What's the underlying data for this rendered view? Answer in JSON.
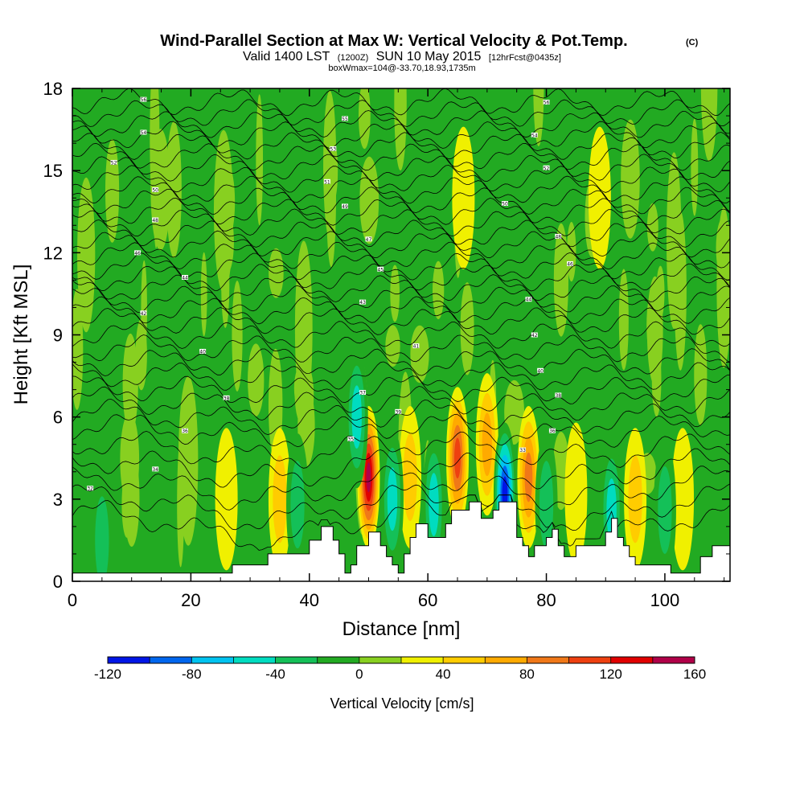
{
  "chart_data": {
    "type": "heatmap",
    "title": "Wind-Parallel Section at Max W: Vertical Velocity & Pot.Temp.",
    "title_mark": "(C)",
    "subtitle_valid": "Valid 1400 LST",
    "subtitle_utc": "(1200Z)",
    "subtitle_date": "SUN 10 May 2015",
    "subtitle_fcst": "[12hrFcst@0435z]",
    "subtitle_box": "boxWmax=104@-33.70,18.93,1735m",
    "xlabel": "Distance [nm]",
    "ylabel": "Height [Kft MSL]",
    "xlim": [
      0,
      111
    ],
    "ylim": [
      0,
      18
    ],
    "x_ticks": [
      0,
      20,
      40,
      60,
      80,
      100
    ],
    "y_ticks": [
      0,
      3,
      6,
      9,
      12,
      15,
      18
    ],
    "colorbar": {
      "label": "Vertical Velocity [cm/s]",
      "levels": [
        -120,
        -100,
        -80,
        -60,
        -40,
        -20,
        0,
        20,
        40,
        60,
        80,
        100,
        120,
        140,
        160
      ],
      "tick_labels": [
        "-120",
        "-80",
        "-40",
        "0",
        "40",
        "80",
        "120",
        "160"
      ],
      "colors": [
        "#0015e6",
        "#0066ee",
        "#00c3f0",
        "#00dcc0",
        "#14c058",
        "#22aa22",
        "#88d020",
        "#f0f000",
        "#ffcc00",
        "#ffaa00",
        "#f07818",
        "#ee4010",
        "#e00000",
        "#b00048"
      ]
    },
    "background_w": 0,
    "updrafts": [
      {
        "x": 3,
        "z": 2.4,
        "w": 20
      },
      {
        "x": 10,
        "z": 3.0,
        "w": 20
      },
      {
        "x": 26,
        "z": 3.0,
        "w": 25
      },
      {
        "x": 35,
        "z": 3.0,
        "w": 45
      },
      {
        "x": 50,
        "z": 3.8,
        "w": 145
      },
      {
        "x": 57,
        "z": 3.8,
        "w": 60
      },
      {
        "x": 65,
        "z": 4.5,
        "w": 115
      },
      {
        "x": 70,
        "z": 5.0,
        "w": 75
      },
      {
        "x": 77,
        "z": 3.8,
        "w": 85
      },
      {
        "x": 85,
        "z": 3.2,
        "w": 40
      },
      {
        "x": 95,
        "z": 3.0,
        "w": 45
      },
      {
        "x": 103,
        "z": 3.0,
        "w": 30
      },
      {
        "x": 66,
        "z": 14,
        "w": 40
      },
      {
        "x": 89,
        "z": 14,
        "w": 25
      }
    ],
    "downdrafts": [
      {
        "x": 5,
        "z": 1.5,
        "w": -25
      },
      {
        "x": 38,
        "z": 2.8,
        "w": -35
      },
      {
        "x": 48,
        "z": 6.0,
        "w": -45
      },
      {
        "x": 54,
        "z": 3.0,
        "w": -55
      },
      {
        "x": 61,
        "z": 2.8,
        "w": -45
      },
      {
        "x": 73,
        "z": 3.2,
        "w": -115
      },
      {
        "x": 80,
        "z": 2.8,
        "w": -40
      },
      {
        "x": 91,
        "z": 2.6,
        "w": -50
      },
      {
        "x": 100,
        "z": 2.6,
        "w": -30
      }
    ],
    "terrain_kft": [
      [
        0,
        0.3
      ],
      [
        26,
        0.3
      ],
      [
        27,
        0.6
      ],
      [
        29,
        0.6
      ],
      [
        33,
        1.0
      ],
      [
        39,
        1.0
      ],
      [
        40,
        1.5
      ],
      [
        41,
        1.5
      ],
      [
        42,
        2.0
      ],
      [
        43,
        2.0
      ],
      [
        44,
        1.5
      ],
      [
        45,
        1.0
      ],
      [
        46,
        0.3
      ],
      [
        47,
        0.6
      ],
      [
        48,
        1.3
      ],
      [
        49,
        1.3
      ],
      [
        50,
        1.8
      ],
      [
        51,
        1.8
      ],
      [
        52,
        1.3
      ],
      [
        53,
        0.9
      ],
      [
        54,
        0.6
      ],
      [
        55,
        0.3
      ],
      [
        56,
        1.0
      ],
      [
        57,
        1.6
      ],
      [
        58,
        2.1
      ],
      [
        59,
        2.1
      ],
      [
        60,
        1.6
      ],
      [
        62,
        1.6
      ],
      [
        63,
        2.1
      ],
      [
        64,
        2.6
      ],
      [
        67,
        2.9
      ],
      [
        68,
        2.9
      ],
      [
        69,
        2.3
      ],
      [
        71,
        2.6
      ],
      [
        72,
        2.9
      ],
      [
        74,
        2.9
      ],
      [
        75,
        1.6
      ],
      [
        76,
        1.3
      ],
      [
        77,
        0.9
      ],
      [
        78,
        1.3
      ],
      [
        79,
        1.3
      ],
      [
        80,
        1.6
      ],
      [
        81,
        1.9
      ],
      [
        82,
        1.3
      ],
      [
        83,
        0.9
      ],
      [
        84,
        0.9
      ],
      [
        85,
        1.3
      ],
      [
        89,
        1.3
      ],
      [
        90,
        1.8
      ],
      [
        91,
        2.3
      ],
      [
        92,
        1.6
      ],
      [
        93,
        1.3
      ],
      [
        94,
        0.9
      ],
      [
        95,
        0.6
      ],
      [
        100,
        0.6
      ],
      [
        101,
        0.3
      ],
      [
        105,
        0.3
      ],
      [
        106,
        0.9
      ],
      [
        108,
        1.3
      ],
      [
        111,
        1.3
      ]
    ],
    "isentropes_kft": [
      2.0,
      2.7,
      3.4,
      4.1,
      4.8,
      5.5,
      6.0,
      6.5,
      7.0,
      7.5,
      8.0,
      8.5,
      9.0,
      9.5,
      9.9,
      10.3,
      10.7,
      11.1,
      11.5,
      11.9,
      12.3,
      12.7,
      13.1,
      13.5,
      13.9,
      14.3,
      14.7,
      15.1,
      15.5,
      15.9,
      16.3,
      16.7,
      17.1,
      17.5
    ],
    "isentrope_labels": [
      {
        "x": 3,
        "z": 3.4,
        "text": "32"
      },
      {
        "x": 14,
        "z": 4.1,
        "text": "34"
      },
      {
        "x": 19,
        "z": 5.5,
        "text": "36"
      },
      {
        "x": 26,
        "z": 6.7,
        "text": "38"
      },
      {
        "x": 22,
        "z": 8.4,
        "text": "40"
      },
      {
        "x": 12,
        "z": 9.8,
        "text": "42"
      },
      {
        "x": 19,
        "z": 11.1,
        "text": "44"
      },
      {
        "x": 11,
        "z": 12.0,
        "text": "46"
      },
      {
        "x": 14,
        "z": 13.2,
        "text": "48"
      },
      {
        "x": 14,
        "z": 14.3,
        "text": "50"
      },
      {
        "x": 7,
        "z": 15.3,
        "text": "52"
      },
      {
        "x": 12,
        "z": 16.4,
        "text": "54"
      },
      {
        "x": 12,
        "z": 17.6,
        "text": "56"
      },
      {
        "x": 47,
        "z": 5.2,
        "text": "35"
      },
      {
        "x": 49,
        "z": 6.9,
        "text": "37"
      },
      {
        "x": 55,
        "z": 6.2,
        "text": "39"
      },
      {
        "x": 58,
        "z": 8.6,
        "text": "41"
      },
      {
        "x": 49,
        "z": 10.2,
        "text": "43"
      },
      {
        "x": 52,
        "z": 11.4,
        "text": "45"
      },
      {
        "x": 50,
        "z": 12.5,
        "text": "47"
      },
      {
        "x": 46,
        "z": 13.7,
        "text": "49"
      },
      {
        "x": 43,
        "z": 14.6,
        "text": "51"
      },
      {
        "x": 44,
        "z": 15.8,
        "text": "53"
      },
      {
        "x": 46,
        "z": 16.9,
        "text": "55"
      },
      {
        "x": 76,
        "z": 4.8,
        "text": "33"
      },
      {
        "x": 81,
        "z": 5.5,
        "text": "36"
      },
      {
        "x": 82,
        "z": 6.8,
        "text": "38"
      },
      {
        "x": 79,
        "z": 7.7,
        "text": "40"
      },
      {
        "x": 78,
        "z": 9.0,
        "text": "42"
      },
      {
        "x": 77,
        "z": 10.3,
        "text": "44"
      },
      {
        "x": 84,
        "z": 11.6,
        "text": "46"
      },
      {
        "x": 82,
        "z": 12.6,
        "text": "48"
      },
      {
        "x": 73,
        "z": 13.8,
        "text": "50"
      },
      {
        "x": 80,
        "z": 15.1,
        "text": "52"
      },
      {
        "x": 78,
        "z": 16.3,
        "text": "54"
      },
      {
        "x": 80,
        "z": 17.5,
        "text": "56"
      }
    ]
  }
}
